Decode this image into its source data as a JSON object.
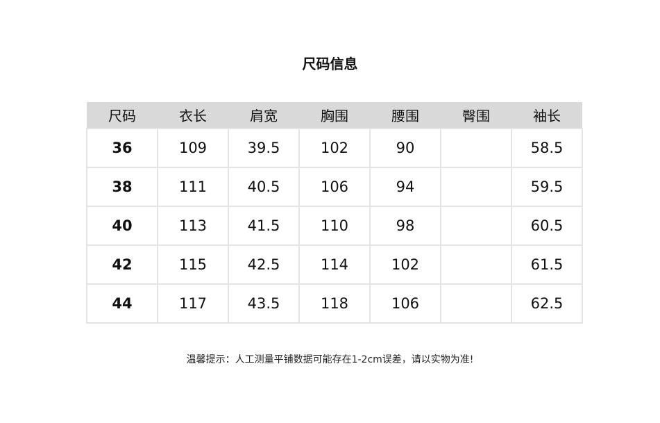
{
  "title": "尺码信息",
  "table": {
    "headers": [
      "尺码",
      "衣长",
      "肩宽",
      "胸围",
      "腰围",
      "臀围",
      "袖长"
    ],
    "rows": [
      [
        "36",
        "109",
        "39.5",
        "102",
        "90",
        "",
        "58.5"
      ],
      [
        "38",
        "111",
        "40.5",
        "106",
        "94",
        "",
        "59.5"
      ],
      [
        "40",
        "113",
        "41.5",
        "110",
        "98",
        "",
        "60.5"
      ],
      [
        "42",
        "115",
        "42.5",
        "114",
        "102",
        "",
        "61.5"
      ],
      [
        "44",
        "117",
        "43.5",
        "118",
        "106",
        "",
        "62.5"
      ]
    ]
  },
  "note": "温馨提示：人工测量平铺数据可能存在1-2cm误差，请以实物为准!",
  "colors": {
    "header_bg": "#d9d9d9",
    "border": "#e3e3e3"
  }
}
